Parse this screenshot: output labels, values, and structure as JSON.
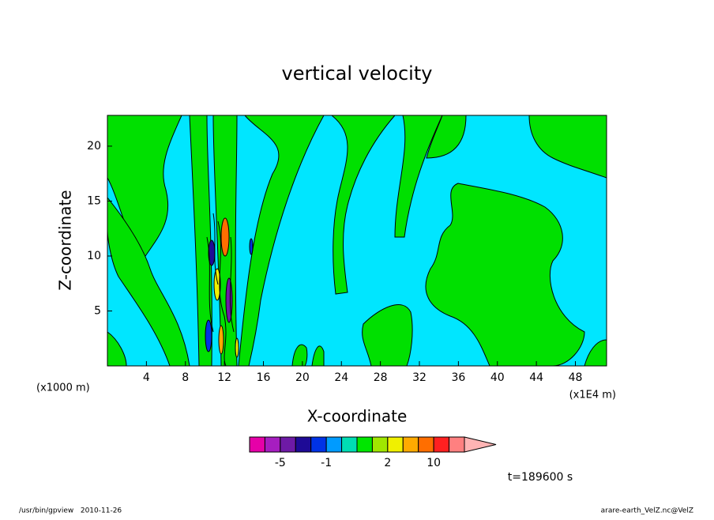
{
  "chart_data": {
    "type": "contour",
    "title": "vertical velocity",
    "xlabel": "X-coordinate",
    "ylabel": "Z-coordinate",
    "x_unit": "(x1E4 m)",
    "y_unit": "(x1000 m)",
    "xlim": [
      0,
      51.2
    ],
    "ylim": [
      0,
      22.8
    ],
    "xticks": [
      4,
      8,
      12,
      16,
      20,
      24,
      28,
      32,
      36,
      40,
      44,
      48
    ],
    "yticks": [
      5,
      10,
      15,
      20
    ],
    "colorbar": {
      "levels": [
        -20,
        -10,
        -5,
        -3,
        -2,
        -1,
        -0.5,
        0.5,
        1,
        2,
        3,
        5,
        10,
        15,
        20
      ],
      "colors": [
        "#e600a8",
        "#a61ec0",
        "#6e1aa6",
        "#1e0a96",
        "#0032e6",
        "#009bff",
        "#00dcb4",
        "#00e600",
        "#a0e600",
        "#f0f000",
        "#ffaa00",
        "#ff6e00",
        "#ff2020",
        "#ff8080"
      ],
      "extend_color": "#ffb4b4",
      "ticks": [
        -5,
        -1,
        2,
        10
      ]
    },
    "time_label": "t=189600 s",
    "footer_left": "/usr/bin/gpview   2010-11-26",
    "footer_right": "arare-earth_VelZ.nc@VelZ"
  }
}
